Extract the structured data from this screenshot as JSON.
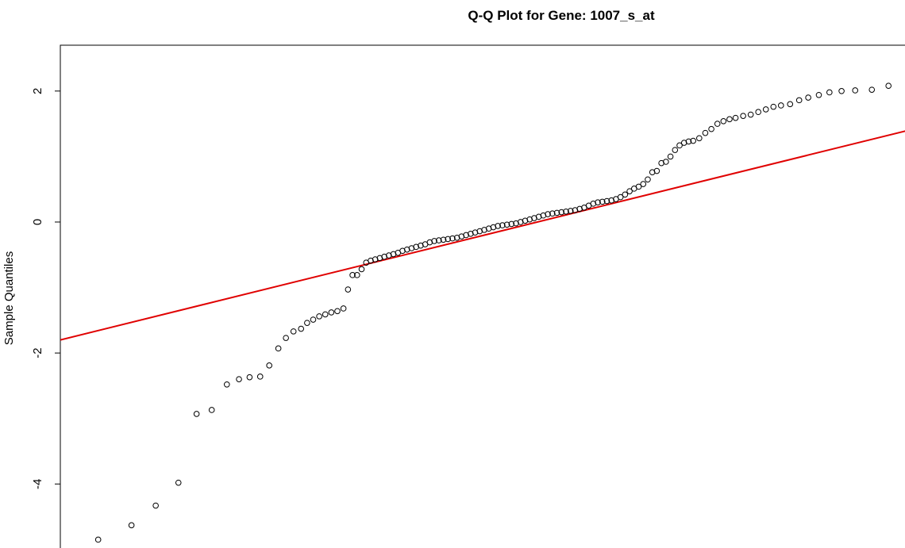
{
  "chart_data": {
    "type": "scatter",
    "title": "Q-Q Plot for Gene: 1007_s_at",
    "xlabel": "",
    "ylabel": "Sample Quantiles",
    "xlim": [
      -2.8,
      2.8
    ],
    "ylim": [
      -5.05,
      2.7
    ],
    "yticks": [
      -4,
      -2,
      0,
      2
    ],
    "grid": false,
    "point_color": "#000000",
    "line_color": "#e00000",
    "reference_line": {
      "slope": 0.5714,
      "intercept": -0.2
    },
    "series": [
      {
        "values": [
          [
            -2.55,
            -4.85
          ],
          [
            -2.33,
            -4.63
          ],
          [
            -2.17,
            -4.33
          ],
          [
            -2.02,
            -3.98
          ],
          [
            -1.9,
            -2.93
          ],
          [
            -1.8,
            -2.87
          ],
          [
            -1.7,
            -2.48
          ],
          [
            -1.62,
            -2.4
          ],
          [
            -1.55,
            -2.37
          ],
          [
            -1.48,
            -2.36
          ],
          [
            -1.42,
            -2.19
          ],
          [
            -1.36,
            -1.93
          ],
          [
            -1.31,
            -1.77
          ],
          [
            -1.26,
            -1.67
          ],
          [
            -1.21,
            -1.63
          ],
          [
            -1.17,
            -1.54
          ],
          [
            -1.13,
            -1.49
          ],
          [
            -1.09,
            -1.44
          ],
          [
            -1.05,
            -1.41
          ],
          [
            -1.01,
            -1.38
          ],
          [
            -0.97,
            -1.36
          ],
          [
            -0.93,
            -1.32
          ],
          [
            -0.9,
            -1.03
          ],
          [
            -0.87,
            -0.81
          ],
          [
            -0.84,
            -0.81
          ],
          [
            -0.81,
            -0.72
          ],
          [
            -0.78,
            -0.62
          ],
          [
            -0.75,
            -0.59
          ],
          [
            -0.72,
            -0.57
          ],
          [
            -0.69,
            -0.55
          ],
          [
            -0.66,
            -0.53
          ],
          [
            -0.63,
            -0.51
          ],
          [
            -0.6,
            -0.49
          ],
          [
            -0.57,
            -0.47
          ],
          [
            -0.54,
            -0.44
          ],
          [
            -0.51,
            -0.42
          ],
          [
            -0.48,
            -0.4
          ],
          [
            -0.45,
            -0.38
          ],
          [
            -0.42,
            -0.36
          ],
          [
            -0.39,
            -0.34
          ],
          [
            -0.36,
            -0.31
          ],
          [
            -0.33,
            -0.29
          ],
          [
            -0.3,
            -0.28
          ],
          [
            -0.27,
            -0.27
          ],
          [
            -0.24,
            -0.26
          ],
          [
            -0.21,
            -0.25
          ],
          [
            -0.18,
            -0.24
          ],
          [
            -0.15,
            -0.22
          ],
          [
            -0.12,
            -0.2
          ],
          [
            -0.09,
            -0.18
          ],
          [
            -0.06,
            -0.16
          ],
          [
            -0.03,
            -0.14
          ],
          [
            0.0,
            -0.12
          ],
          [
            0.03,
            -0.1
          ],
          [
            0.06,
            -0.08
          ],
          [
            0.09,
            -0.06
          ],
          [
            0.12,
            -0.05
          ],
          [
            0.15,
            -0.04
          ],
          [
            0.18,
            -0.03
          ],
          [
            0.21,
            -0.02
          ],
          [
            0.24,
            0.0
          ],
          [
            0.27,
            0.02
          ],
          [
            0.3,
            0.04
          ],
          [
            0.33,
            0.06
          ],
          [
            0.36,
            0.08
          ],
          [
            0.39,
            0.1
          ],
          [
            0.42,
            0.12
          ],
          [
            0.45,
            0.13
          ],
          [
            0.48,
            0.14
          ],
          [
            0.51,
            0.15
          ],
          [
            0.54,
            0.16
          ],
          [
            0.57,
            0.17
          ],
          [
            0.6,
            0.18
          ],
          [
            0.63,
            0.2
          ],
          [
            0.66,
            0.22
          ],
          [
            0.69,
            0.25
          ],
          [
            0.72,
            0.28
          ],
          [
            0.75,
            0.3
          ],
          [
            0.78,
            0.31
          ],
          [
            0.81,
            0.32
          ],
          [
            0.84,
            0.33
          ],
          [
            0.87,
            0.35
          ],
          [
            0.9,
            0.38
          ],
          [
            0.93,
            0.42
          ],
          [
            0.96,
            0.47
          ],
          [
            0.99,
            0.51
          ],
          [
            1.02,
            0.54
          ],
          [
            1.05,
            0.58
          ],
          [
            1.08,
            0.65
          ],
          [
            1.11,
            0.76
          ],
          [
            1.14,
            0.78
          ],
          [
            1.17,
            0.9
          ],
          [
            1.2,
            0.92
          ],
          [
            1.23,
            1.0
          ],
          [
            1.26,
            1.1
          ],
          [
            1.29,
            1.17
          ],
          [
            1.32,
            1.21
          ],
          [
            1.35,
            1.23
          ],
          [
            1.38,
            1.24
          ],
          [
            1.42,
            1.28
          ],
          [
            1.46,
            1.36
          ],
          [
            1.5,
            1.42
          ],
          [
            1.54,
            1.5
          ],
          [
            1.58,
            1.54
          ],
          [
            1.62,
            1.57
          ],
          [
            1.66,
            1.59
          ],
          [
            1.71,
            1.62
          ],
          [
            1.76,
            1.64
          ],
          [
            1.81,
            1.68
          ],
          [
            1.86,
            1.72
          ],
          [
            1.91,
            1.76
          ],
          [
            1.96,
            1.78
          ],
          [
            2.02,
            1.8
          ],
          [
            2.08,
            1.86
          ],
          [
            2.14,
            1.9
          ],
          [
            2.21,
            1.94
          ],
          [
            2.28,
            1.98
          ],
          [
            2.36,
            2.0
          ],
          [
            2.45,
            2.01
          ],
          [
            2.56,
            2.02
          ],
          [
            2.67,
            2.08
          ]
        ]
      }
    ]
  }
}
